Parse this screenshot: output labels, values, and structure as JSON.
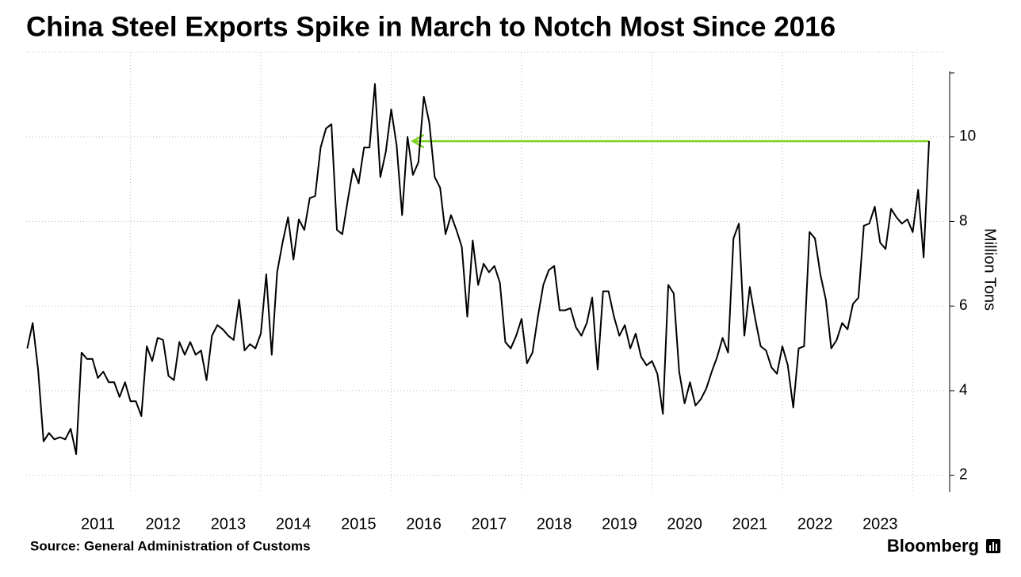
{
  "chart_data": {
    "type": "line",
    "title": "China Steel Exports Spike in March to Notch Most Since 2016",
    "y_label": "Million Tons",
    "source": "Source: General Administration of Customs",
    "brand": "Bloomberg",
    "x": [
      2010.417,
      2010.5,
      2010.583,
      2010.667,
      2010.75,
      2010.833,
      2010.917,
      2011,
      2011.083,
      2011.167,
      2011.25,
      2011.333,
      2011.417,
      2011.5,
      2011.583,
      2011.667,
      2011.75,
      2011.833,
      2011.917,
      2012,
      2012.083,
      2012.167,
      2012.25,
      2012.333,
      2012.417,
      2012.5,
      2012.583,
      2012.667,
      2012.75,
      2012.833,
      2012.917,
      2013,
      2013.083,
      2013.167,
      2013.25,
      2013.333,
      2013.417,
      2013.5,
      2013.583,
      2013.667,
      2013.75,
      2013.833,
      2013.917,
      2014,
      2014.083,
      2014.167,
      2014.25,
      2014.333,
      2014.417,
      2014.5,
      2014.583,
      2014.667,
      2014.75,
      2014.833,
      2014.917,
      2015,
      2015.083,
      2015.167,
      2015.25,
      2015.333,
      2015.417,
      2015.5,
      2015.583,
      2015.667,
      2015.75,
      2015.833,
      2015.917,
      2016,
      2016.083,
      2016.167,
      2016.25,
      2016.333,
      2016.417,
      2016.5,
      2016.583,
      2016.667,
      2016.75,
      2016.833,
      2016.917,
      2017,
      2017.083,
      2017.167,
      2017.25,
      2017.333,
      2017.417,
      2017.5,
      2017.583,
      2017.667,
      2017.75,
      2017.833,
      2017.917,
      2018,
      2018.083,
      2018.167,
      2018.25,
      2018.333,
      2018.417,
      2018.5,
      2018.583,
      2018.667,
      2018.75,
      2018.833,
      2018.917,
      2019,
      2019.083,
      2019.167,
      2019.25,
      2019.333,
      2019.417,
      2019.5,
      2019.583,
      2019.667,
      2019.75,
      2019.833,
      2019.917,
      2020,
      2020.083,
      2020.167,
      2020.25,
      2020.333,
      2020.417,
      2020.5,
      2020.583,
      2020.667,
      2020.75,
      2020.833,
      2020.917,
      2021,
      2021.083,
      2021.167,
      2021.25,
      2021.333,
      2021.417,
      2021.5,
      2021.583,
      2021.667,
      2021.75,
      2021.833,
      2021.917,
      2022,
      2022.083,
      2022.167,
      2022.25,
      2022.333,
      2022.417,
      2022.5,
      2022.583,
      2022.667,
      2022.75,
      2022.833,
      2022.917,
      2023,
      2023.083,
      2023.167,
      2023.25,
      2023.333,
      2023.417,
      2023.5,
      2023.583,
      2023.667,
      2023.75,
      2023.833,
      2023.917,
      2024,
      2024.083,
      2024.167,
      2024.25
    ],
    "series": [
      {
        "name": "China steel exports",
        "color": "#000000",
        "values": [
          5.0,
          5.6,
          4.5,
          2.8,
          3.0,
          2.85,
          2.9,
          2.85,
          3.1,
          2.5,
          4.9,
          4.75,
          4.75,
          4.3,
          4.45,
          4.2,
          4.2,
          3.85,
          4.2,
          3.75,
          3.75,
          3.4,
          5.05,
          4.7,
          5.25,
          5.2,
          4.35,
          4.25,
          5.15,
          4.85,
          5.15,
          4.85,
          4.95,
          4.25,
          5.3,
          5.55,
          5.45,
          5.3,
          5.2,
          6.15,
          4.95,
          5.1,
          5.0,
          5.35,
          6.75,
          4.85,
          6.8,
          7.5,
          8.1,
          7.1,
          8.05,
          7.8,
          8.55,
          8.6,
          9.75,
          10.2,
          10.3,
          7.8,
          7.7,
          8.5,
          9.25,
          8.9,
          9.75,
          9.75,
          11.25,
          9.05,
          9.65,
          10.65,
          9.8,
          8.15,
          10.0,
          9.1,
          9.4,
          10.95,
          10.35,
          9.05,
          8.8,
          7.7,
          8.15,
          7.8,
          7.4,
          5.75,
          7.55,
          6.5,
          7.0,
          6.8,
          6.95,
          6.55,
          5.15,
          5.0,
          5.3,
          5.7,
          4.65,
          4.9,
          5.75,
          6.5,
          6.85,
          6.95,
          5.9,
          5.9,
          5.95,
          5.5,
          5.3,
          5.6,
          6.2,
          4.5,
          6.35,
          6.35,
          5.75,
          5.3,
          5.55,
          5.0,
          5.35,
          4.8,
          4.6,
          4.7,
          4.4,
          3.45,
          6.5,
          6.3,
          4.45,
          3.7,
          4.2,
          3.65,
          3.8,
          4.05,
          4.45,
          4.8,
          5.25,
          4.9,
          7.6,
          7.95,
          5.3,
          6.45,
          5.7,
          5.05,
          4.95,
          4.55,
          4.4,
          5.05,
          4.6,
          3.6,
          5.0,
          5.05,
          7.75,
          7.6,
          6.75,
          6.15,
          5.0,
          5.2,
          5.6,
          5.45,
          6.05,
          6.2,
          7.9,
          7.95,
          8.35,
          7.5,
          7.35,
          8.3,
          8.1,
          7.95,
          8.05,
          7.75,
          8.75,
          7.15,
          9.9
        ]
      }
    ],
    "reference_arrow": {
      "y": 9.9,
      "from_x": 2024.25,
      "to_x": 2016.33,
      "color": "#7ed321"
    },
    "xlim": [
      2010.4,
      2024.25
    ],
    "xgrid": [
      2012,
      2014,
      2016,
      2018,
      2020,
      2022,
      2024
    ],
    "xticks": [
      {
        "value": 2011.5,
        "label": "2011"
      },
      {
        "value": 2012.5,
        "label": "2012"
      },
      {
        "value": 2013.5,
        "label": "2013"
      },
      {
        "value": 2014.5,
        "label": "2014"
      },
      {
        "value": 2015.5,
        "label": "2015"
      },
      {
        "value": 2016.5,
        "label": "2016"
      },
      {
        "value": 2017.5,
        "label": "2017"
      },
      {
        "value": 2018.5,
        "label": "2018"
      },
      {
        "value": 2019.5,
        "label": "2019"
      },
      {
        "value": 2020.5,
        "label": "2020"
      },
      {
        "value": 2021.5,
        "label": "2021"
      },
      {
        "value": 2022.5,
        "label": "2022"
      },
      {
        "value": 2023.5,
        "label": "2023"
      }
    ],
    "ylim": [
      1.6,
      12
    ],
    "yticks": [
      2,
      4,
      6,
      8,
      10
    ],
    "grid": true,
    "y_axis_side": "right"
  }
}
